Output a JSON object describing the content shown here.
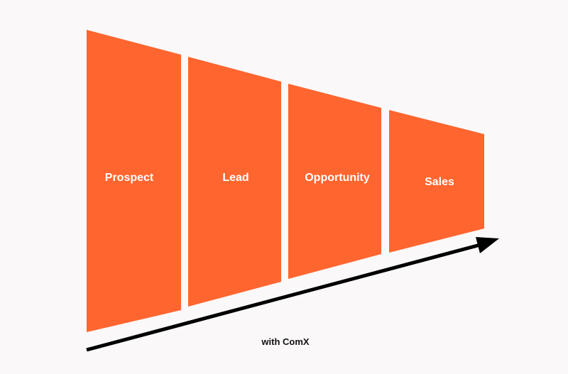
{
  "stages": [
    {
      "label": "Prospect"
    },
    {
      "label": "Lead"
    },
    {
      "label": "Opportunity"
    },
    {
      "label": "Sales"
    }
  ],
  "arrow_caption": "with ComX",
  "colors": {
    "stage_fill": "#ff652f",
    "arrow": "#000000",
    "background": "#faf8f9"
  }
}
